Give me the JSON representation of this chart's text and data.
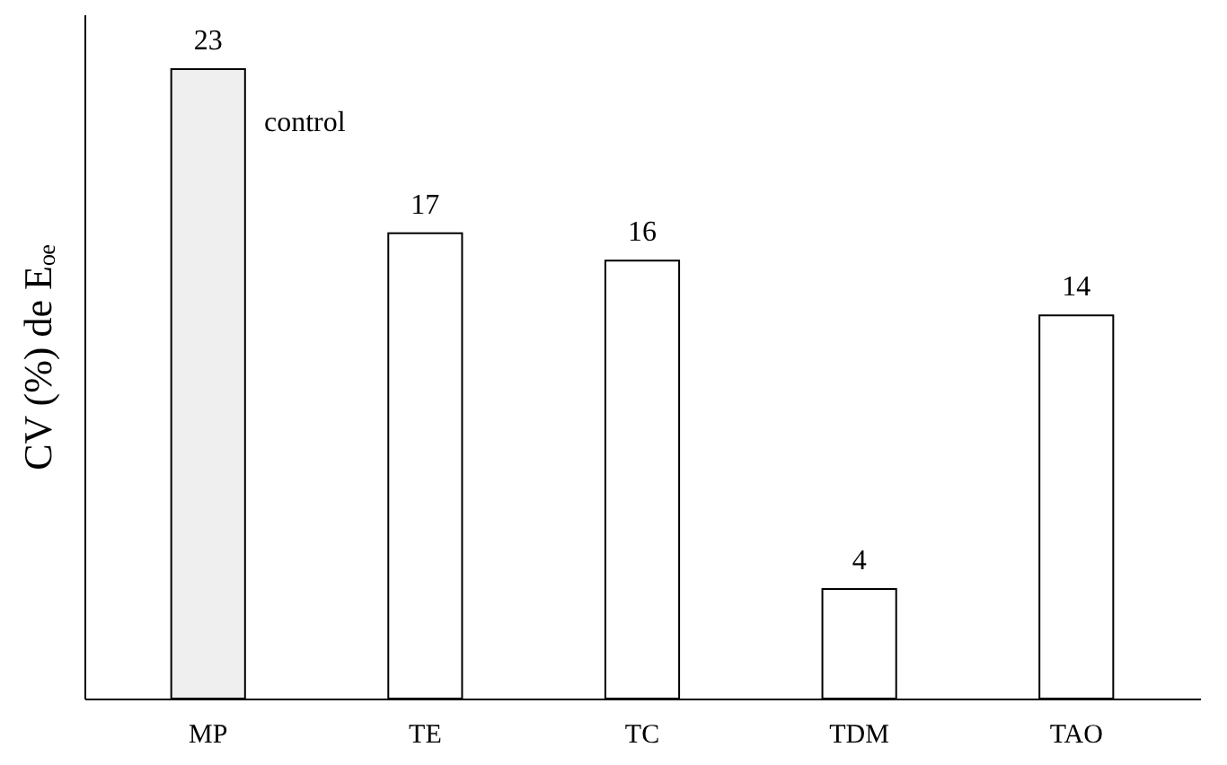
{
  "chart_data": {
    "type": "bar",
    "ylabel": "CV (%) de Eₒₑ",
    "categories": [
      "MP",
      "TE",
      "TC",
      "TDM",
      "TAO"
    ],
    "values": [
      23,
      17,
      16,
      4,
      14
    ],
    "colors": [
      "#efefef",
      "#ffffff",
      "#ffffff",
      "#ffffff",
      "#ffffff"
    ],
    "data_labels": true,
    "ylim": [
      0,
      25
    ],
    "tick_labels": "x",
    "grid": false,
    "annotations": [
      "control"
    ]
  }
}
